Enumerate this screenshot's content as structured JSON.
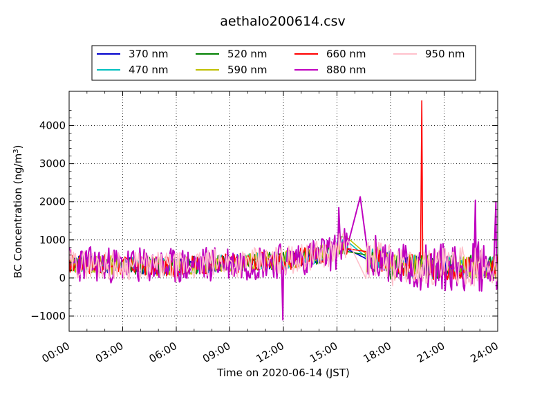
{
  "chart_data": {
    "type": "line",
    "title": "aethalo200614.csv",
    "xlabel": "Time on 2020-06-14 (JST)",
    "ylabel_main": "BC Concentration (ng/m",
    "ylabel_sup": "3",
    "ylabel_tail": ")",
    "xlim_hours": [
      0,
      24
    ],
    "ylim": [
      -1400,
      4900
    ],
    "x_ticks": [
      {
        "value": 0,
        "label": "00:00"
      },
      {
        "value": 3,
        "label": "03:00"
      },
      {
        "value": 6,
        "label": "06:00"
      },
      {
        "value": 9,
        "label": "09:00"
      },
      {
        "value": 12,
        "label": "12:00"
      },
      {
        "value": 15,
        "label": "15:00"
      },
      {
        "value": 18,
        "label": "18:00"
      },
      {
        "value": 21,
        "label": "21:00"
      },
      {
        "value": 24,
        "label": "24:00"
      }
    ],
    "y_ticks": [
      {
        "value": -1000,
        "label": "−1000"
      },
      {
        "value": 0,
        "label": "0"
      },
      {
        "value": 1000,
        "label": "1000"
      },
      {
        "value": 2000,
        "label": "2000"
      },
      {
        "value": 3000,
        "label": "3000"
      },
      {
        "value": 4000,
        "label": "4000"
      }
    ],
    "grid": true,
    "legend_position": "top",
    "series": [
      {
        "name": "370 nm",
        "color": "#0000cc",
        "amp": 220,
        "seed": 3
      },
      {
        "name": "470 nm",
        "color": "#00bfbf",
        "amp": 230,
        "seed": 7
      },
      {
        "name": "520 nm",
        "color": "#008000",
        "amp": 240,
        "seed": 11
      },
      {
        "name": "590 nm",
        "color": "#bfbf00",
        "amp": 250,
        "seed": 13
      },
      {
        "name": "660 nm",
        "color": "#ff0000",
        "amp": 260,
        "seed": 17
      },
      {
        "name": "880 nm",
        "color": "#bf00bf",
        "amp": 480,
        "seed": 23
      },
      {
        "name": "950 nm",
        "color": "#ffc0cb",
        "amp": 380,
        "seed": 29
      }
    ],
    "gap_hours": [
      15.65,
      16.6
    ],
    "anchor_points": [
      {
        "series": "880 nm",
        "x": 15.1,
        "y": 1850
      },
      {
        "series": "880 nm",
        "x": 16.3,
        "y": 2130
      },
      {
        "series": "660 nm",
        "x": 19.75,
        "y": 4650
      },
      {
        "series": "880 nm",
        "x": 11.97,
        "y": -1100
      },
      {
        "series": "880 nm",
        "x": 22.75,
        "y": 2040
      },
      {
        "series": "880 nm",
        "x": 23.9,
        "y": 2000
      }
    ]
  }
}
